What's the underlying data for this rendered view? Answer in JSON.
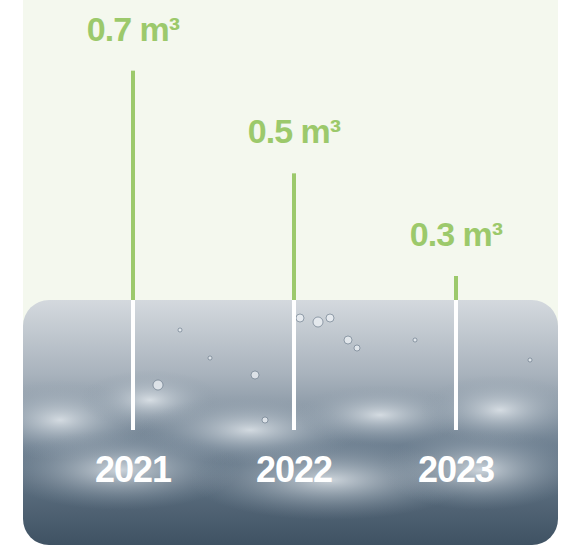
{
  "chart_data": {
    "type": "bar",
    "categories": [
      "2021",
      "2022",
      "2023"
    ],
    "values": [
      0.7,
      0.5,
      0.3
    ],
    "value_labels": [
      "0.7 m³",
      "0.5 m³",
      "0.3 m³"
    ],
    "color": "#9cc96b",
    "ylim": [
      0,
      0.75
    ],
    "data_labels": true,
    "tick_labels": "x"
  }
}
